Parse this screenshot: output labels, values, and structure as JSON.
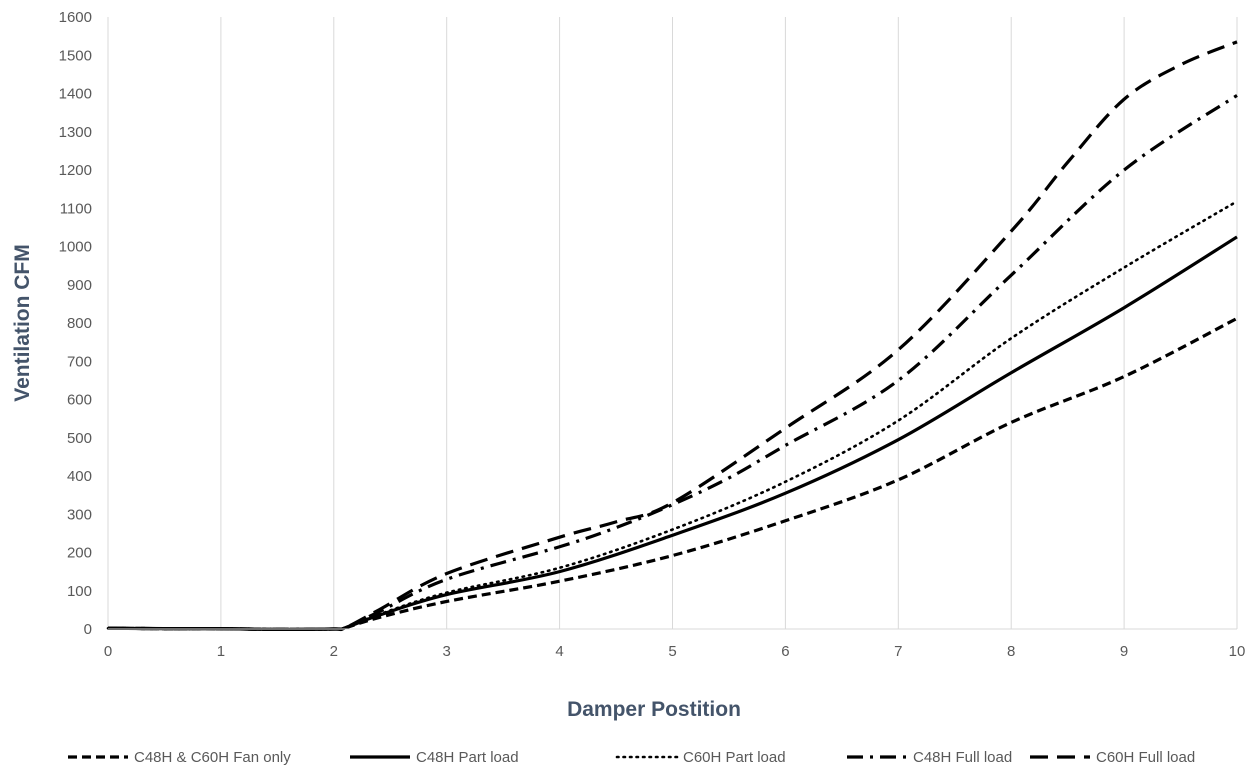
{
  "chart_data": {
    "type": "line",
    "title": "",
    "xlabel": "Damper Postition",
    "ylabel": "Ventilation CFM",
    "xlim": [
      0,
      10
    ],
    "ylim": [
      0,
      1600
    ],
    "xticks": [
      0,
      1,
      2,
      3,
      4,
      5,
      6,
      7,
      8,
      9,
      10
    ],
    "yticks": [
      0,
      100,
      200,
      300,
      400,
      500,
      600,
      700,
      800,
      900,
      1000,
      1100,
      1200,
      1300,
      1400,
      1500,
      1600
    ],
    "grid": "vertical",
    "legend_position": "bottom",
    "series": [
      {
        "name": "C48H & C60H Fan only",
        "style": "dashed",
        "x": [
          0,
          0.5,
          1,
          1.5,
          2,
          2.1,
          2.4,
          3,
          4,
          5,
          6,
          7,
          8,
          9,
          10
        ],
        "y": [
          2,
          1,
          1,
          -1,
          0,
          3,
          30,
          72,
          125,
          192,
          283,
          390,
          540,
          660,
          812
        ]
      },
      {
        "name": "C48H Part load",
        "style": "solid",
        "x": [
          0,
          0.5,
          1,
          1.5,
          2,
          2.1,
          2.4,
          3,
          4,
          5,
          6,
          7,
          8,
          9,
          10
        ],
        "y": [
          2,
          1,
          1,
          -1,
          0,
          3,
          36,
          90,
          150,
          245,
          355,
          495,
          670,
          840,
          1025
        ]
      },
      {
        "name": "C60H Part load",
        "style": "dotted",
        "x": [
          0,
          0.5,
          1,
          1.5,
          2,
          2.1,
          2.4,
          3,
          4,
          5,
          6,
          7,
          8,
          9,
          10
        ],
        "y": [
          2,
          1,
          1,
          -1,
          0,
          3,
          38,
          95,
          160,
          260,
          385,
          545,
          760,
          945,
          1118
        ]
      },
      {
        "name": "C48H Full load",
        "style": "dashdot",
        "x": [
          0,
          0.5,
          1,
          1.5,
          2,
          2.1,
          2.4,
          3,
          4,
          4.5,
          5,
          5.5,
          6,
          7,
          8,
          9,
          10
        ],
        "y": [
          2,
          1,
          1,
          -1,
          0,
          3,
          45,
          130,
          215,
          265,
          325,
          395,
          480,
          650,
          925,
          1200,
          1395
        ]
      },
      {
        "name": "C60H Full load",
        "style": "longdash",
        "x": [
          0,
          0.5,
          1,
          1.5,
          2,
          2.1,
          2.4,
          3,
          4,
          4.5,
          5,
          6,
          7,
          8,
          8.5,
          9,
          9.5,
          10
        ],
        "y": [
          2,
          1,
          1,
          -1,
          0,
          3,
          50,
          145,
          240,
          280,
          330,
          525,
          730,
          1040,
          1220,
          1385,
          1475,
          1535
        ]
      }
    ]
  }
}
